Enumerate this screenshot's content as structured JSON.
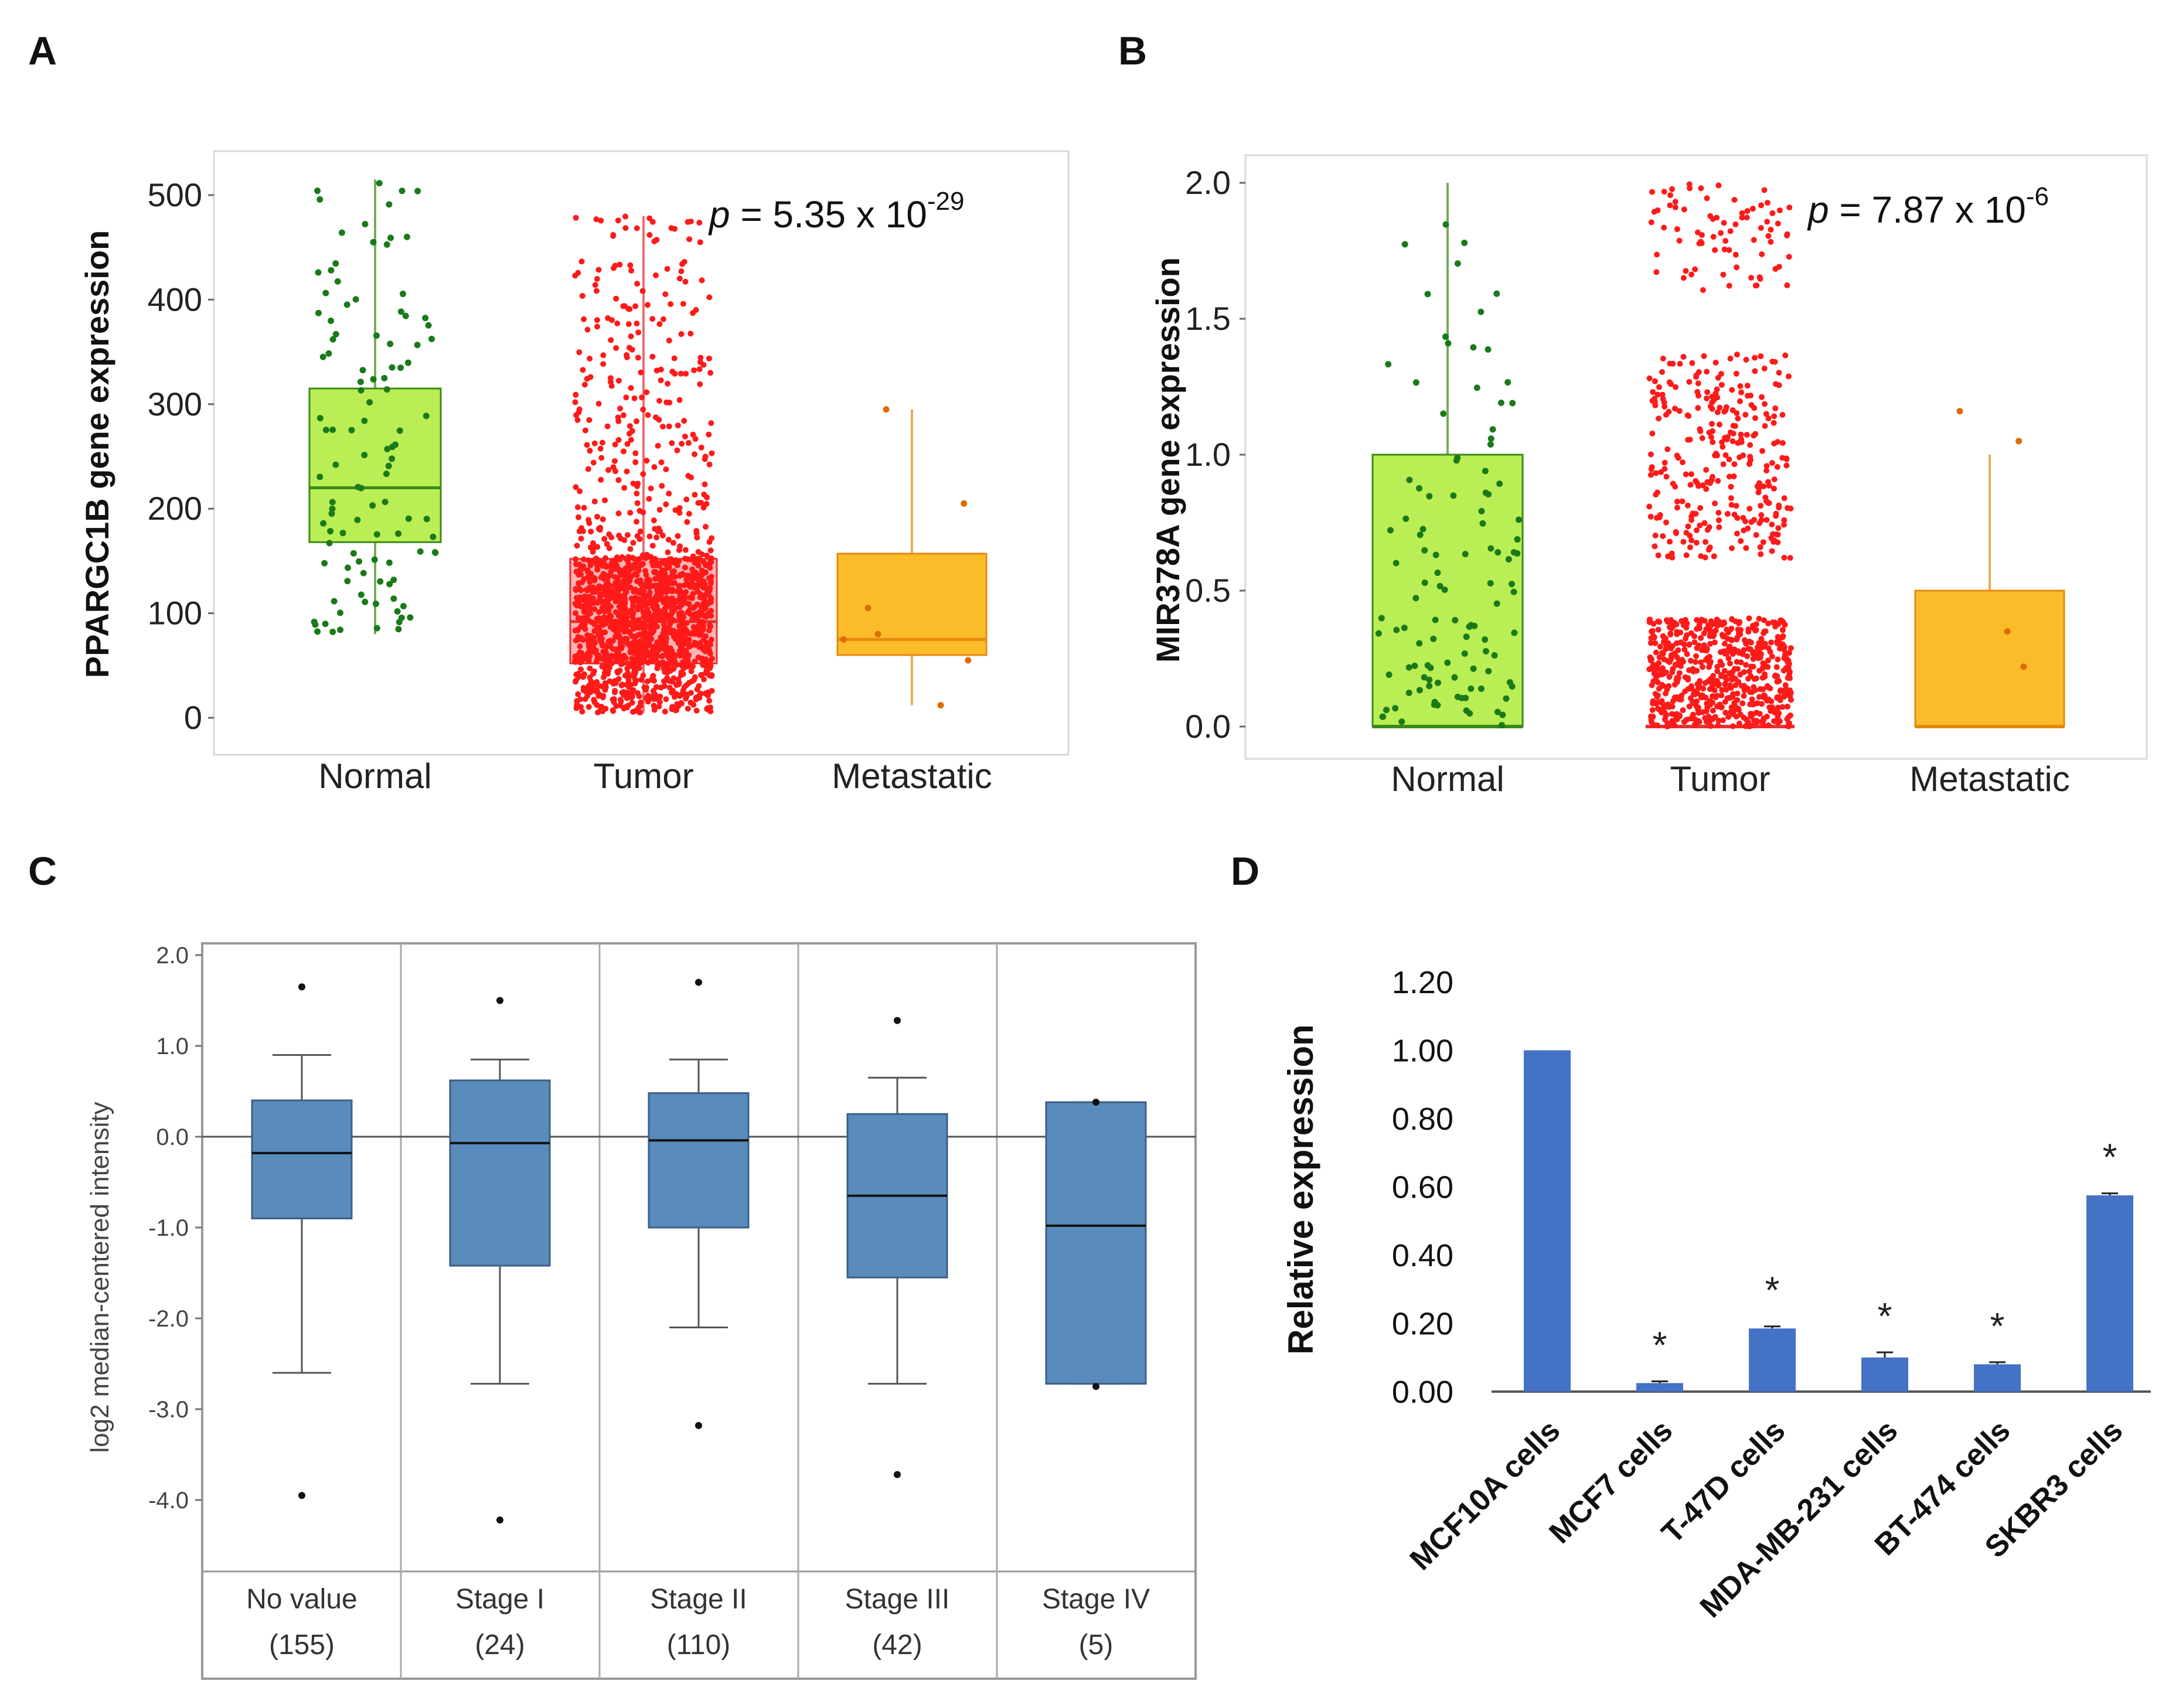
{
  "panels": {
    "a": {
      "label": "A",
      "chart_data": {
        "type": "box",
        "ylabel": "PPARGC1B gene expression",
        "ylim": [
          -20,
          530
        ],
        "yticks": [
          0,
          100,
          200,
          300,
          400,
          500
        ],
        "categories": [
          "Normal",
          "Tumor",
          "Metastatic"
        ],
        "p_value": {
          "prefix": "p",
          "mid": " = 5.35  x 10",
          "exp": "-29"
        },
        "boxes": [
          {
            "name": "Normal",
            "min": 80,
            "q1": 168,
            "median": 220,
            "q3": 315,
            "max": 515,
            "fill": "#b9ef55",
            "stroke": "#3b8a18",
            "points": "#1a7a1a",
            "n": 110,
            "pmin": 80,
            "pmax": 515
          },
          {
            "name": "Tumor",
            "min": 5,
            "q1": 52,
            "median": 92,
            "q3": 152,
            "max": 480,
            "fill": "#ffb3b3",
            "stroke": "#e53030",
            "points": "#ff1a1a",
            "n": 1600,
            "pmin": 5,
            "pmax": 480
          },
          {
            "name": "Metastatic",
            "min": 12,
            "q1": 60,
            "median": 75,
            "q3": 157,
            "max": 295,
            "fill": "#fbbc2a",
            "stroke": "#e58a10",
            "points": "#e06a00",
            "n": 7,
            "pmin": 12,
            "pmax": 295
          }
        ]
      }
    },
    "b": {
      "label": "B",
      "chart_data": {
        "type": "box",
        "ylabel": "MIR378A gene expression",
        "ylim": [
          -0.05,
          2.07
        ],
        "yticks": [
          "0.0",
          "0.5",
          "1.0",
          "1.5",
          "2.0"
        ],
        "categories": [
          "Normal",
          "Tumor",
          "Metastatic"
        ],
        "p_value": {
          "prefix": "p",
          "mid": " = 7.87  x 10",
          "exp": "-6"
        },
        "boxes": [
          {
            "name": "Normal",
            "min": 0,
            "q1": 0,
            "median": 0,
            "q3": 1.0,
            "max": 2.0,
            "fill": "#b9ef55",
            "stroke": "#3b8a18",
            "points": "#1a7a1a",
            "n": 110
          },
          {
            "name": "Tumor",
            "min": 0,
            "q1": 0,
            "median": 0,
            "q3": 0,
            "max": 0,
            "fill": "#ffb3b3",
            "stroke": "#e53030",
            "points": "#ff1a1a",
            "n": 1000
          },
          {
            "name": "Metastatic",
            "min": 0,
            "q1": 0,
            "median": 0,
            "q3": 0.5,
            "max": 1.0,
            "fill": "#fbbc2a",
            "stroke": "#e58a10",
            "points": "#e06a00",
            "n": 4
          }
        ]
      }
    },
    "c": {
      "label": "C",
      "chart_data": {
        "type": "box",
        "ylabel": "log2 median-centered intensity",
        "ylim": [
          -4.6,
          2.0
        ],
        "yticks": [
          "2.0",
          "1.0",
          "0.0",
          "-1.0",
          "-2.0",
          "-3.0",
          "-4.0"
        ],
        "reference_line": 0.0,
        "categories": [
          {
            "name": "No value",
            "n": "(155)"
          },
          {
            "name": "Stage I",
            "n": "(24)"
          },
          {
            "name": "Stage II",
            "n": "(110)"
          },
          {
            "name": "Stage III",
            "n": "(42)"
          },
          {
            "name": "Stage IV",
            "n": "(5)"
          }
        ],
        "box_color": "#5a8bbd",
        "boxes": [
          {
            "min": -2.6,
            "q1": -0.9,
            "median": -0.18,
            "q3": 0.4,
            "max": 0.9,
            "outliers": [
              1.65,
              -3.95
            ]
          },
          {
            "min": -2.72,
            "q1": -1.42,
            "median": -0.07,
            "q3": 0.62,
            "max": 0.85,
            "outliers": [
              1.5,
              -4.22
            ]
          },
          {
            "min": -2.1,
            "q1": -1.0,
            "median": -0.04,
            "q3": 0.48,
            "max": 0.85,
            "outliers": [
              1.7,
              -3.18
            ]
          },
          {
            "min": -2.72,
            "q1": -1.55,
            "median": -0.65,
            "q3": 0.25,
            "max": 0.65,
            "outliers": [
              1.28,
              -3.72
            ]
          },
          {
            "min": -2.72,
            "q1": -2.72,
            "median": -0.98,
            "q3": 0.38,
            "max": 0.38,
            "outliers": [
              0.38,
              -2.75
            ]
          }
        ]
      }
    },
    "d": {
      "label": "D",
      "chart_data": {
        "type": "bar",
        "ylabel": "Relative expression",
        "ylim": [
          0,
          1.2
        ],
        "yticks": [
          "0.00",
          "0.20",
          "0.40",
          "0.60",
          "0.80",
          "1.00",
          "1.20"
        ],
        "categories": [
          "MCF10A cells",
          "MCF7 cells",
          "T-47D cells",
          "MDA-MB-231 cells",
          "BT-474 cells",
          "SKBR3 cells"
        ],
        "values": [
          1.0,
          0.025,
          0.185,
          0.1,
          0.08,
          0.575
        ],
        "errors": [
          0,
          0.005,
          0.006,
          0.015,
          0.006,
          0.006
        ],
        "significance": [
          "",
          "*",
          "*",
          "*",
          "*",
          "*"
        ],
        "bar_color": "#4472c4"
      }
    }
  }
}
